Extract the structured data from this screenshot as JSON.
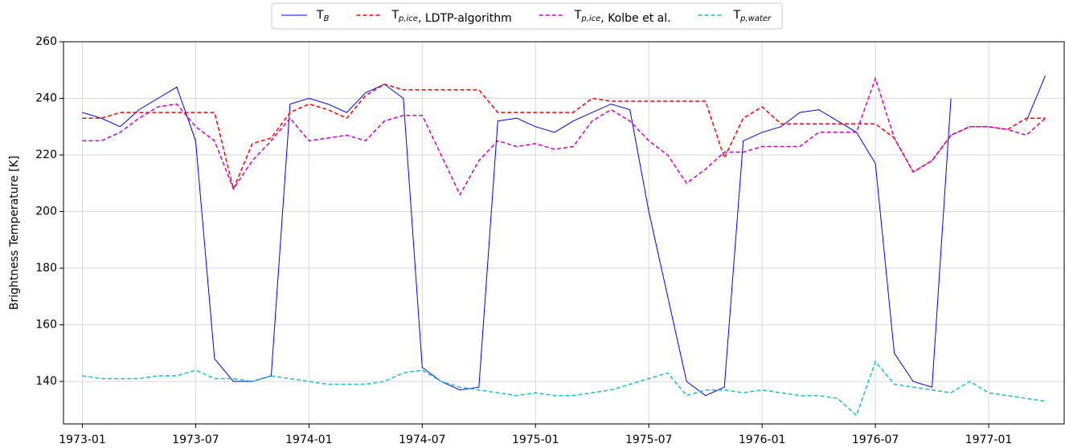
{
  "chart_data": {
    "type": "line",
    "ylabel": "Brightness Temperature [K]",
    "x": [
      "1973-01",
      "1973-02",
      "1973-03",
      "1973-04",
      "1973-05",
      "1973-06",
      "1973-07",
      "1973-08",
      "1973-09",
      "1973-10",
      "1973-11",
      "1973-12",
      "1974-01",
      "1974-02",
      "1974-03",
      "1974-04",
      "1974-05",
      "1974-06",
      "1974-07",
      "1974-08",
      "1974-09",
      "1974-10",
      "1974-11",
      "1974-12",
      "1975-01",
      "1975-02",
      "1975-03",
      "1975-04",
      "1975-05",
      "1975-06",
      "1975-07",
      "1975-08",
      "1975-09",
      "1975-10",
      "1975-11",
      "1975-12",
      "1976-01",
      "1976-02",
      "1976-03",
      "1976-04",
      "1976-05",
      "1976-06",
      "1976-07",
      "1976-08",
      "1976-09",
      "1976-10",
      "1976-11",
      "1976-12",
      "1977-01",
      "1977-02",
      "1977-03",
      "1977-04"
    ],
    "series": [
      {
        "name": "T_{B}",
        "color": "#0000ff",
        "dash": false,
        "values": [
          235,
          233,
          230,
          236,
          240,
          244,
          225,
          148,
          140,
          140,
          142,
          238,
          240,
          238,
          235,
          242,
          245,
          240,
          145,
          140,
          137,
          138,
          232,
          233,
          230,
          228,
          232,
          235,
          238,
          236,
          200,
          170,
          140,
          135,
          138,
          225,
          228,
          230,
          235,
          236,
          232,
          228,
          217,
          150,
          140,
          138,
          240,
          null,
          null,
          null,
          232,
          248
        ]
      },
      {
        "name": "T_{p,ice}, LDTP-algorithm",
        "color": "#ff0000",
        "dash": true,
        "values": [
          233,
          233,
          235,
          235,
          235,
          235,
          235,
          235,
          208,
          224,
          226,
          235,
          238,
          236,
          233,
          241,
          245,
          243,
          243,
          243,
          243,
          243,
          235,
          235,
          235,
          235,
          235,
          240,
          239,
          239,
          239,
          239,
          239,
          239,
          219,
          233,
          237,
          231,
          231,
          231,
          231,
          231,
          231,
          226,
          214,
          218,
          227,
          230,
          230,
          229,
          233,
          233
        ]
      },
      {
        "name": "T_{p,ice}, Kolbe et al.",
        "color": "#cc00cc",
        "dash": true,
        "values": [
          225,
          225,
          228,
          233,
          237,
          238,
          230,
          225,
          208,
          218,
          225,
          233,
          225,
          226,
          227,
          225,
          232,
          234,
          234,
          220,
          206,
          218,
          225,
          223,
          224,
          222,
          223,
          232,
          236,
          232,
          225,
          220,
          210,
          215,
          221,
          221,
          223,
          223,
          223,
          228,
          228,
          228,
          247,
          226,
          214,
          218,
          227,
          230,
          230,
          229,
          227,
          233
        ]
      },
      {
        "name": "T_{p,water}",
        "color": "#17becf",
        "dash": true,
        "values": [
          142,
          141,
          141,
          141,
          142,
          142,
          144,
          141,
          141,
          140,
          142,
          141,
          140,
          139,
          139,
          139,
          140,
          143,
          144,
          140,
          138,
          137,
          136,
          135,
          136,
          135,
          135,
          136,
          137,
          139,
          141,
          143,
          135,
          137,
          137,
          136,
          137,
          136,
          135,
          135,
          134,
          128,
          147,
          139,
          138,
          137,
          136,
          140,
          136,
          135,
          134,
          133
        ]
      }
    ],
    "xlim": [
      "1972-12",
      "1977-05"
    ],
    "xticks": [
      "1973-01",
      "1973-07",
      "1974-01",
      "1974-07",
      "1975-01",
      "1975-07",
      "1976-01",
      "1976-07",
      "1977-01"
    ],
    "ylim": [
      125,
      260
    ],
    "yticks": [
      140,
      160,
      180,
      200,
      220,
      240,
      260
    ],
    "grid": true,
    "legend": "top"
  }
}
